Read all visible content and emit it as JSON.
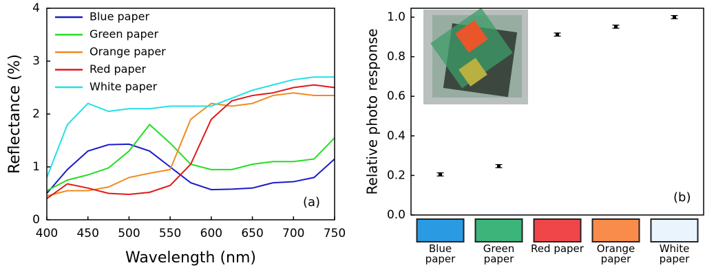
{
  "chart_data": [
    {
      "type": "line",
      "ylabel": "Reflectance (%)",
      "xlabel": "Wavelength (nm)",
      "annotation": "(a)",
      "x": [
        400,
        425,
        450,
        475,
        500,
        525,
        550,
        575,
        600,
        625,
        650,
        675,
        700,
        725,
        750
      ],
      "series": [
        {
          "name": "Blue paper",
          "color": "#1a1acc",
          "values": [
            0.5,
            0.95,
            1.3,
            1.42,
            1.43,
            1.3,
            1.0,
            0.7,
            0.57,
            0.58,
            0.6,
            0.7,
            0.72,
            0.8,
            1.15
          ]
        },
        {
          "name": "Green paper",
          "color": "#22dd22",
          "values": [
            0.55,
            0.75,
            0.85,
            0.98,
            1.3,
            1.8,
            1.45,
            1.05,
            0.95,
            0.95,
            1.05,
            1.1,
            1.1,
            1.15,
            1.55
          ]
        },
        {
          "name": "Orange paper",
          "color": "#f08a1e",
          "values": [
            0.45,
            0.55,
            0.55,
            0.62,
            0.8,
            0.88,
            0.95,
            1.9,
            2.2,
            2.15,
            2.2,
            2.35,
            2.4,
            2.35,
            2.35
          ]
        },
        {
          "name": "Red paper",
          "color": "#e01818",
          "values": [
            0.4,
            0.68,
            0.6,
            0.5,
            0.48,
            0.52,
            0.65,
            1.05,
            1.9,
            2.25,
            2.35,
            2.4,
            2.5,
            2.55,
            2.5
          ]
        },
        {
          "name": "White paper",
          "color": "#22e0e8",
          "values": [
            0.8,
            1.8,
            2.2,
            2.05,
            2.1,
            2.1,
            2.15,
            2.15,
            2.15,
            2.3,
            2.45,
            2.55,
            2.65,
            2.7,
            2.7
          ]
        }
      ],
      "xlim": [
        400,
        750
      ],
      "xticks": [
        400,
        450,
        500,
        550,
        600,
        650,
        700,
        750
      ],
      "ylim": [
        0,
        4
      ],
      "yticks": [
        0,
        1,
        2,
        3,
        4
      ],
      "legend": "upper-left"
    },
    {
      "type": "scatter",
      "ylabel": "Relative photo response",
      "annotation": "(b)",
      "categories": [
        "Blue paper",
        "Green paper",
        "Red paper",
        "Orange paper",
        "White paper"
      ],
      "swatch_colors": [
        "#2a9be3",
        "#3cb47a",
        "#f0464a",
        "#f98c4a",
        "#eaf4fc"
      ],
      "values": [
        0.205,
        0.247,
        0.912,
        0.952,
        1.0
      ],
      "errors": [
        0.008,
        0.008,
        0.008,
        0.008,
        0.008
      ],
      "color": "#000000",
      "ylim": [
        0,
        1.045
      ],
      "yticks": [
        {
          "value": 0,
          "label": "0.0"
        },
        {
          "value": 0.2,
          "label": "0.2"
        },
        {
          "value": 0.4,
          "label": "0.4"
        },
        {
          "value": 0.6,
          "label": "0.6"
        },
        {
          "value": 0.8,
          "label": "0.8"
        },
        {
          "value": 1,
          "label": "1.0"
        }
      ]
    }
  ]
}
